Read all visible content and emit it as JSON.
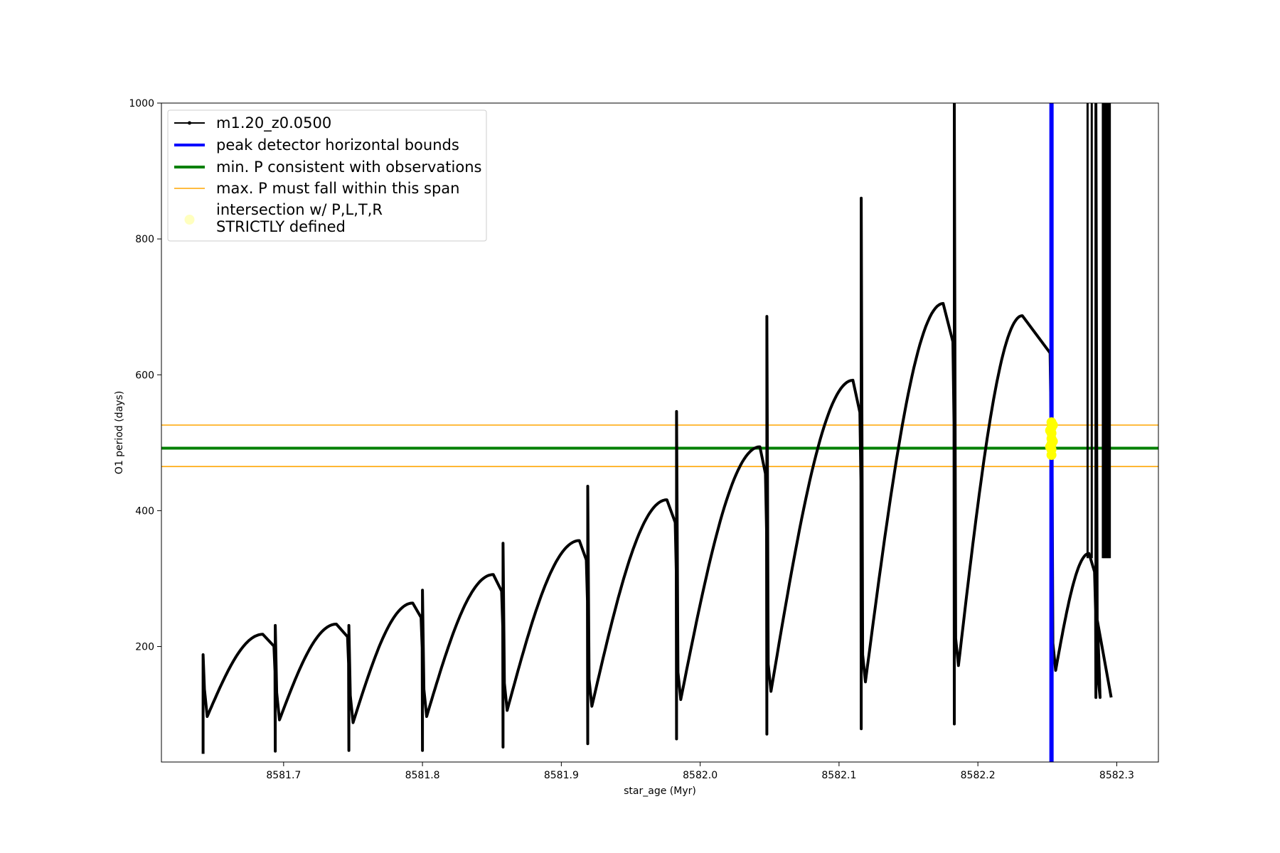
{
  "chart_data": {
    "type": "line",
    "xlabel": "star_age (Myr)",
    "ylabel": "O1 period (days)",
    "xlim": [
      8581.612,
      8582.33
    ],
    "ylim": [
      30,
      1000
    ],
    "xticks": [
      8581.7,
      8581.8,
      8581.9,
      8582.0,
      8582.1,
      8582.2,
      8582.3
    ],
    "xtick_labels": [
      "8581.7",
      "8581.8",
      "8581.9",
      "8582.0",
      "8582.1",
      "8582.2",
      "8582.3"
    ],
    "yticks": [
      200,
      400,
      600,
      800,
      1000
    ],
    "ytick_labels": [
      "200",
      "400",
      "600",
      "800",
      "1000"
    ],
    "grid": false,
    "legend_position": "top-left",
    "series": [
      {
        "name": "m1.20_z0.0500",
        "kind": "line-with-markers",
        "color": "#000000",
        "cycles": [
          {
            "start": 8581.642,
            "min": 97,
            "peak_x": 8581.685,
            "peak": 218,
            "spike_high": 188,
            "spike_low": 42
          },
          {
            "start": 8581.694,
            "min": 92,
            "peak_x": 8581.738,
            "peak": 233,
            "spike_high": 231,
            "spike_low": 46
          },
          {
            "start": 8581.747,
            "min": 88,
            "peak_x": 8581.793,
            "peak": 264,
            "spike_high": 231,
            "spike_low": 47
          },
          {
            "start": 8581.8,
            "min": 97,
            "peak_x": 8581.851,
            "peak": 306,
            "spike_high": 283,
            "spike_low": 47
          },
          {
            "start": 8581.858,
            "min": 106,
            "peak_x": 8581.913,
            "peak": 356,
            "spike_high": 352,
            "spike_low": 52
          },
          {
            "start": 8581.919,
            "min": 112,
            "peak_x": 8581.976,
            "peak": 416,
            "spike_high": 436,
            "spike_low": 57
          },
          {
            "start": 8581.983,
            "min": 122,
            "peak_x": 8582.043,
            "peak": 494,
            "spike_high": 546,
            "spike_low": 64
          },
          {
            "start": 8582.048,
            "min": 134,
            "peak_x": 8582.11,
            "peak": 592,
            "spike_high": 686,
            "spike_low": 71
          },
          {
            "start": 8582.116,
            "min": 148,
            "peak_x": 8582.175,
            "peak": 705,
            "spike_high": 860,
            "spike_low": 79
          },
          {
            "start": 8582.183,
            "min": 172,
            "peak_x": 8582.232,
            "peak": 687,
            "spike_high": 1000,
            "spike_low": 86
          },
          {
            "start": 8582.253,
            "min": 165,
            "peak_x": 8582.28,
            "peak": 337,
            "spike_high": 660,
            "spike_low": 165
          },
          {
            "start": 8582.285,
            "min": 125,
            "peak_x": 8582.285,
            "peak": 250,
            "spike_high": 1000,
            "spike_low": 125
          }
        ],
        "spikes_to_top_x": [
          8582.279,
          8582.282,
          8582.29,
          8582.291,
          8582.292,
          8582.293,
          8582.294,
          8582.295
        ],
        "end_x": 8582.296,
        "end_y": 125
      },
      {
        "name": "peak detector horizontal bounds",
        "kind": "vline",
        "x": 8582.253,
        "color": "#0000ff"
      },
      {
        "name": "min. P consistent with observations",
        "kind": "hline",
        "y": 492,
        "color": "#008000"
      },
      {
        "name": "max. P must fall within this span",
        "kind": "hline-pair",
        "y_values": [
          465,
          526
        ],
        "color": "#ffa500"
      },
      {
        "name_lines": [
          "intersection w/ P,L,T,R",
          "STRICTLY defined"
        ],
        "kind": "scatter",
        "color": "#ffff00",
        "points": [
          {
            "x": 8582.253,
            "y": 530
          },
          {
            "x": 8582.253,
            "y": 522
          },
          {
            "x": 8582.253,
            "y": 514
          },
          {
            "x": 8582.253,
            "y": 506
          },
          {
            "x": 8582.253,
            "y": 498
          },
          {
            "x": 8582.253,
            "y": 490
          },
          {
            "x": 8582.253,
            "y": 482
          },
          {
            "x": 8582.254,
            "y": 526
          },
          {
            "x": 8582.252,
            "y": 518
          },
          {
            "x": 8582.254,
            "y": 502
          },
          {
            "x": 8582.252,
            "y": 494
          }
        ]
      }
    ]
  }
}
